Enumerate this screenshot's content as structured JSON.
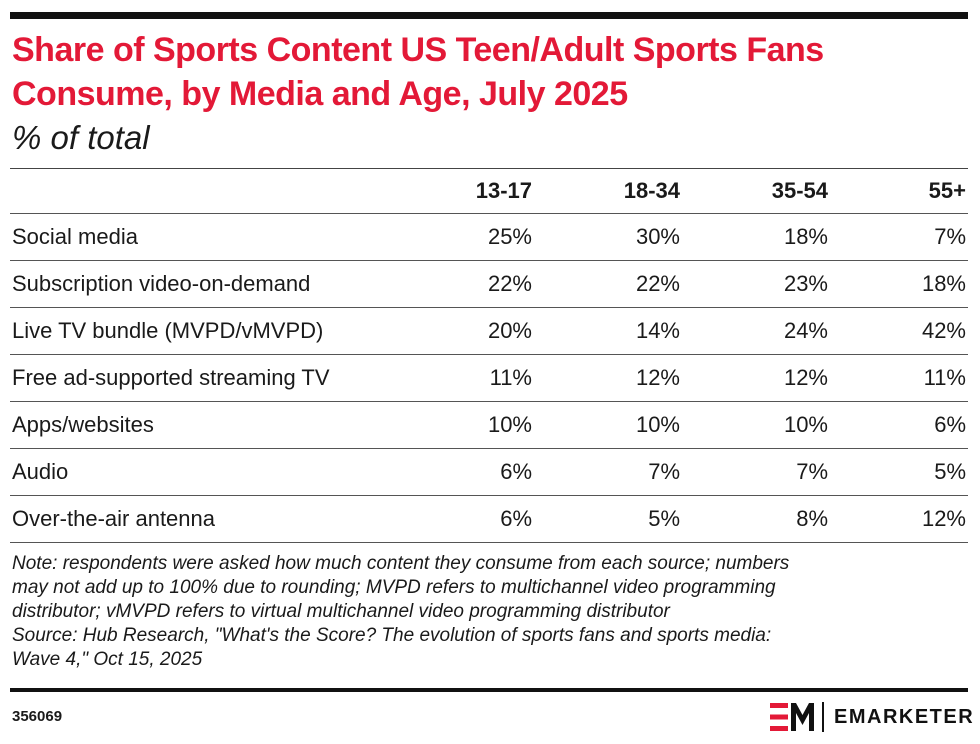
{
  "title": "Share of Sports Content US Teen/Adult Sports Fans Consume, by Media and Age, July 2025",
  "subtitle": "% of total",
  "chart_data": {
    "type": "table",
    "columns": [
      "",
      "13-17",
      "18-34",
      "35-54",
      "55+"
    ],
    "rows": [
      {
        "label": "Social media",
        "values": [
          "25%",
          "30%",
          "18%",
          "7%"
        ]
      },
      {
        "label": "Subscription video-on-demand",
        "values": [
          "22%",
          "22%",
          "23%",
          "18%"
        ]
      },
      {
        "label": "Live TV bundle (MVPD/vMVPD)",
        "values": [
          "20%",
          "14%",
          "24%",
          "42%"
        ]
      },
      {
        "label": "Free ad-supported streaming TV",
        "values": [
          "11%",
          "12%",
          "12%",
          "11%"
        ]
      },
      {
        "label": "Apps/websites",
        "values": [
          "10%",
          "10%",
          "10%",
          "6%"
        ]
      },
      {
        "label": "Audio",
        "values": [
          "6%",
          "7%",
          "7%",
          "5%"
        ]
      },
      {
        "label": "Over-the-air antenna",
        "values": [
          "6%",
          "5%",
          "8%",
          "12%"
        ]
      }
    ]
  },
  "note_lines": [
    "Note: respondents were asked how much content they consume from each source; numbers",
    "may not add up to 100% due to rounding; MVPD refers to multichannel video programming",
    "distributor; vMVPD refers to virtual multichannel video programming distributor",
    "Source: Hub Research, \"What's the Score? The evolution of sports fans and sports media:",
    "Wave 4,\" Oct 15, 2025"
  ],
  "footer": {
    "chart_id": "356069",
    "brand": "EMARKETER"
  },
  "colors": {
    "title": "#e31937",
    "logo_red": "#e31937",
    "rules": "#111111"
  },
  "icons": [
    "emarketer-logo-icon"
  ]
}
